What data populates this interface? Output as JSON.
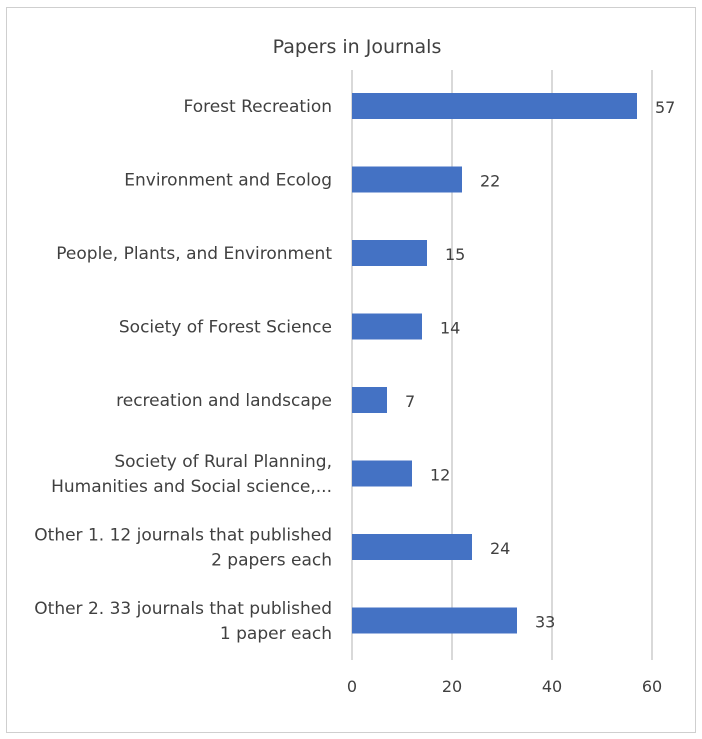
{
  "chart_data": {
    "type": "bar",
    "orientation": "horizontal",
    "title": "Papers in Journals",
    "categories": [
      [
        "Forest Recreation"
      ],
      [
        "Environment and Ecolog"
      ],
      [
        "People, Plants, and Environment"
      ],
      [
        "Society of Forest Science"
      ],
      [
        "recreation and landscape"
      ],
      [
        "Society of Rural Planning,",
        "Humanities and Social science,..."
      ],
      [
        "Other 1. 12 journals that published",
        "2 papers each"
      ],
      [
        "Other 2. 33 journals that published",
        "1 paper each"
      ]
    ],
    "values": [
      57,
      22,
      15,
      14,
      7,
      12,
      24,
      33
    ],
    "xlim": [
      0,
      60
    ],
    "xticks": [
      0,
      20,
      40,
      60
    ],
    "grid": true,
    "bar_color": "#4472C4",
    "grid_color": "#d9d9d9",
    "data_labels": true
  }
}
